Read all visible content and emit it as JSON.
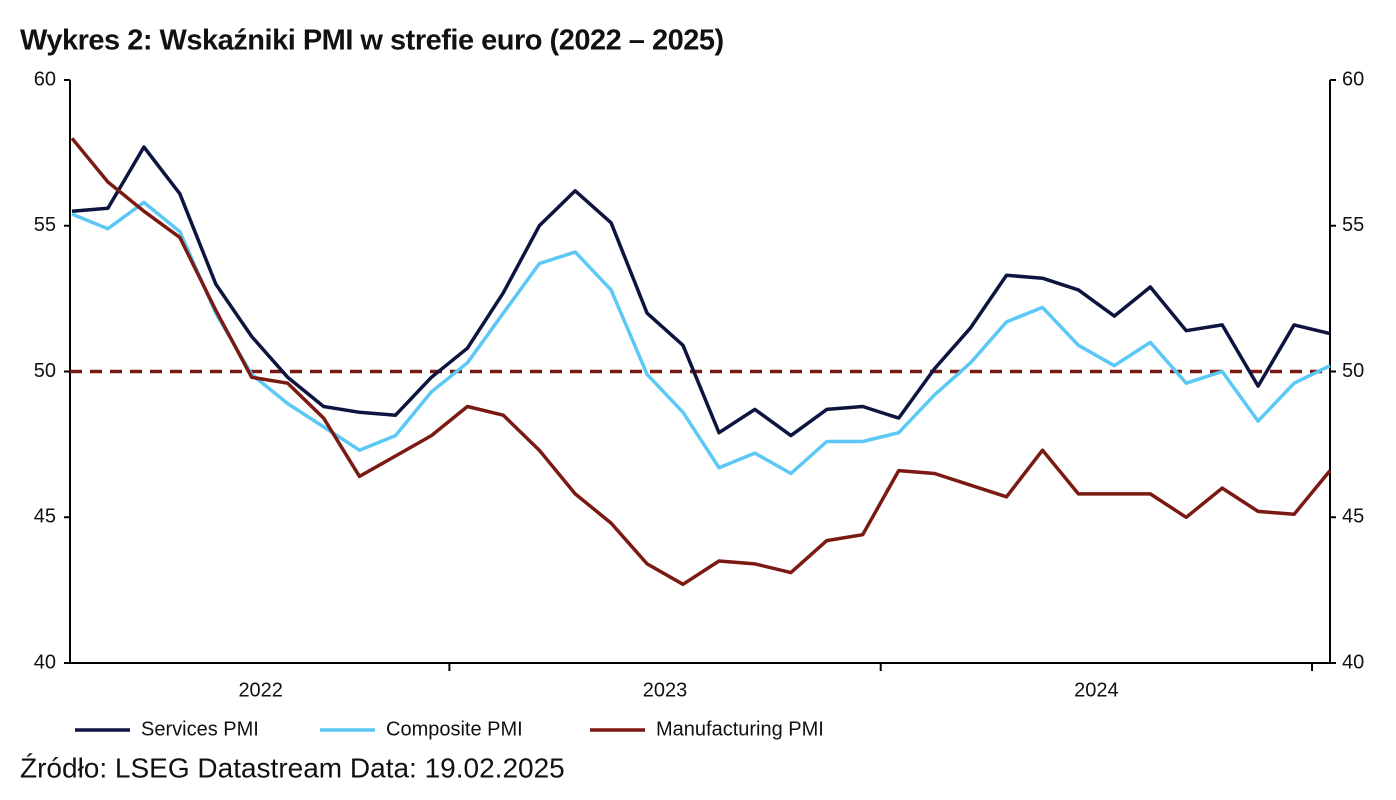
{
  "chart_data": {
    "type": "line",
    "title": "Wykres 2: Wskaźniki PMI w strefie euro (2022 – 2025)",
    "source": "Źródło: LSEG Datastream Data: 19.02.2025",
    "categories": [
      null,
      null,
      null,
      null,
      null,
      null,
      null,
      null,
      null,
      null,
      null,
      null,
      null,
      null,
      null,
      null,
      null,
      null,
      null,
      null,
      null,
      null,
      null,
      null,
      null,
      null,
      null,
      null,
      null,
      null,
      null,
      null,
      null,
      null,
      null,
      null
    ],
    "series": [
      {
        "name": "Services PMI",
        "color": "#0d1440",
        "values": [
          55.5,
          55.6,
          57.7,
          56.1,
          53.0,
          51.2,
          49.8,
          48.8,
          48.6,
          48.5,
          49.8,
          50.8,
          52.7,
          55.0,
          56.2,
          55.1,
          52.0,
          50.9,
          47.9,
          48.7,
          47.8,
          48.7,
          48.8,
          48.4,
          50.1,
          51.5,
          53.3,
          53.2,
          52.8,
          51.9,
          52.9,
          51.4,
          51.6,
          49.5,
          51.6,
          51.3
        ]
      },
      {
        "name": "Composite PMI",
        "color": "#5bc8f5",
        "values": [
          55.4,
          54.9,
          55.8,
          54.8,
          52.0,
          49.9,
          48.9,
          48.1,
          47.3,
          47.8,
          49.3,
          50.3,
          52.0,
          53.7,
          54.1,
          52.8,
          49.9,
          48.6,
          46.7,
          47.2,
          46.5,
          47.6,
          47.6,
          47.9,
          49.2,
          50.3,
          51.7,
          52.2,
          50.9,
          50.2,
          51.0,
          49.6,
          50.0,
          48.3,
          49.6,
          50.2
        ]
      },
      {
        "name": "Manufacturing PMI",
        "color": "#7b1a13",
        "values": [
          58.0,
          56.5,
          55.5,
          54.6,
          52.1,
          49.8,
          49.6,
          48.4,
          46.4,
          47.1,
          47.8,
          48.8,
          48.5,
          47.3,
          45.8,
          44.8,
          43.4,
          42.7,
          43.5,
          43.4,
          43.1,
          44.2,
          44.4,
          46.6,
          46.5,
          46.1,
          45.7,
          47.3,
          45.8,
          45.8,
          45.8,
          45.0,
          46.0,
          45.2,
          45.1,
          46.6
        ]
      }
    ],
    "xlim": [
      0,
      35
    ],
    "xticks": [
      {
        "value": 5.25,
        "label": "2022"
      },
      {
        "value": 16.5,
        "label": "2023"
      },
      {
        "value": 28.5,
        "label": "2024"
      }
    ],
    "x_separators": [
      10.5,
      22.5,
      34.5
    ],
    "ylim": [
      40,
      60
    ],
    "yticks": [
      40,
      45,
      50,
      55,
      60
    ],
    "reference_line": {
      "value": 50,
      "color": "#7b1a13"
    },
    "grid": false
  }
}
